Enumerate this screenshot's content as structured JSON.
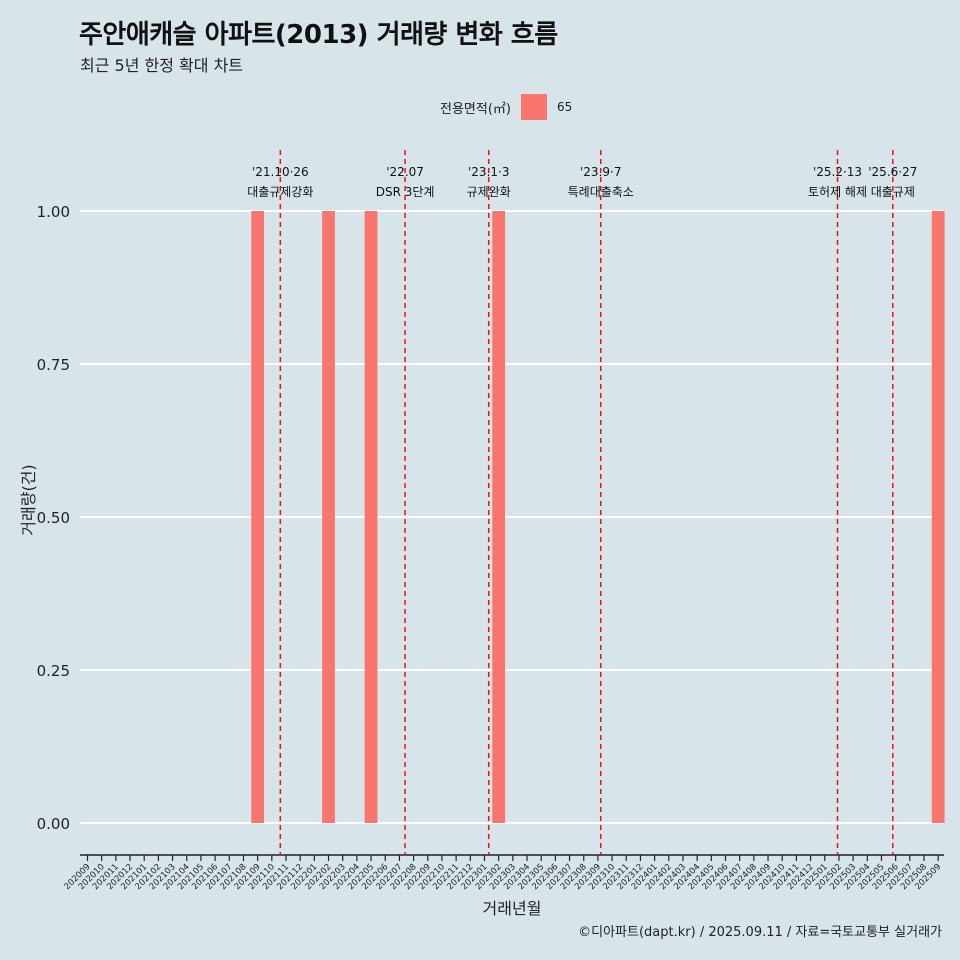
{
  "header": {
    "title": "주안애캐슬 아파트(2013) 거래량 변화 흐름",
    "subtitle": "최근 5년 한정 확대 차트"
  },
  "legend": {
    "title": "전용면적(㎡)",
    "items": [
      {
        "label": "65",
        "color": "#f8766d"
      }
    ]
  },
  "caption": "©디아파트(dapt.kr) / 2025.09.11 / 자료=국토교통부 실거래가",
  "chart_data": {
    "type": "bar",
    "title": "주안애캐슬 아파트(2013) 거래량 변화 흐름",
    "xlabel": "거래년월",
    "ylabel": "거래량(건)",
    "ylim": [
      0,
      1
    ],
    "y_ticks": [
      "0.00",
      "0.25",
      "0.50",
      "0.75",
      "1.00"
    ],
    "categories": [
      "202009",
      "202010",
      "202011",
      "202012",
      "202101",
      "202102",
      "202103",
      "202104",
      "202105",
      "202106",
      "202107",
      "202108",
      "202109",
      "202110",
      "202111",
      "202112",
      "202201",
      "202202",
      "202203",
      "202204",
      "202205",
      "202206",
      "202207",
      "202208",
      "202209",
      "202210",
      "202211",
      "202212",
      "202301",
      "202302",
      "202303",
      "202304",
      "202305",
      "202306",
      "202307",
      "202308",
      "202309",
      "202310",
      "202311",
      "202312",
      "202401",
      "202402",
      "202403",
      "202404",
      "202405",
      "202406",
      "202407",
      "202408",
      "202409",
      "202410",
      "202411",
      "202412",
      "202501",
      "202502",
      "202503",
      "202504",
      "202505",
      "202506",
      "202507",
      "202508",
      "202509"
    ],
    "series": [
      {
        "name": "65",
        "color": "#f8766d",
        "values": [
          0,
          0,
          0,
          0,
          0,
          0,
          0,
          0,
          0,
          0,
          0,
          0,
          1,
          0,
          0,
          0,
          0,
          1,
          0,
          0,
          1,
          0,
          0,
          0,
          0,
          0,
          0,
          0,
          0,
          1,
          0,
          0,
          0,
          0,
          0,
          0,
          0,
          0,
          0,
          0,
          0,
          0,
          0,
          0,
          0,
          0,
          0,
          0,
          0,
          0,
          0,
          0,
          0,
          0,
          0,
          0,
          0,
          0,
          0,
          0,
          1
        ]
      }
    ],
    "events": [
      {
        "position": 13.6,
        "date": "'21.10·26",
        "label": "대출규제강화"
      },
      {
        "position": 22.4,
        "date": "'22.07",
        "label": "DSR 3단계"
      },
      {
        "position": 28.3,
        "date": "'23.1·3",
        "label": "규제완화"
      },
      {
        "position": 36.2,
        "date": "'23.9·7",
        "label": "특례대출축소"
      },
      {
        "position": 52.9,
        "date": "'25.2·13",
        "label": "토허제 해제"
      },
      {
        "position": 56.8,
        "date": "'25.6·27",
        "label": "대출규제"
      }
    ],
    "grid": true,
    "legend_position": "top"
  }
}
